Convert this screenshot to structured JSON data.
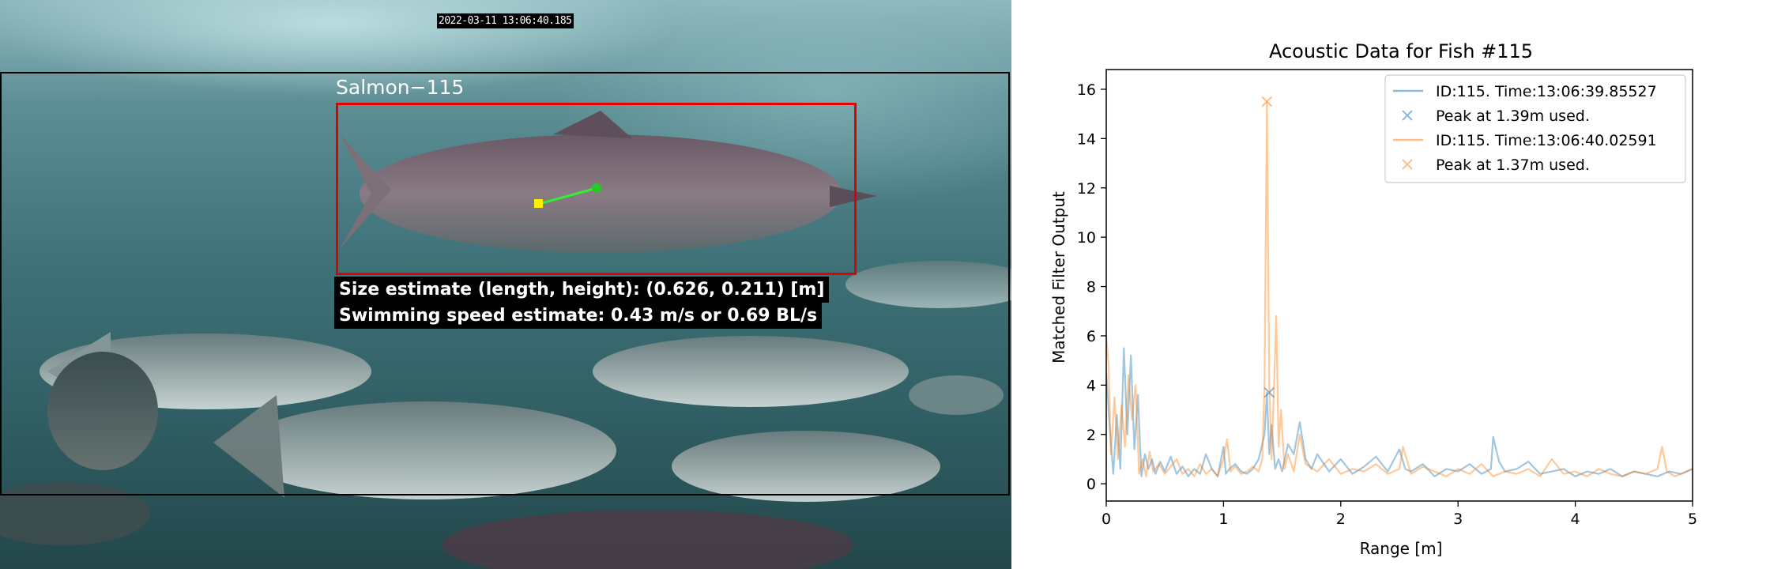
{
  "video": {
    "timestamp": "2022-03-11 13:06:40.185",
    "fish_label": "Salmon−115",
    "size_estimate": "Size estimate (length, height): (0.626, 0.211) [m]",
    "speed_estimate": "Swimming speed estimate: 0.43 m/s or 0.69 BL/s",
    "colors": {
      "bbox": "#e00000",
      "track_line": "#33ee33",
      "track_start": "#ffee00",
      "track_end": "#22cc22"
    }
  },
  "chart_data": {
    "type": "line",
    "title": "Acoustic Data for Fish #115",
    "xlabel": "Range [m]",
    "ylabel": "Matched Filter Output",
    "xlim": [
      0,
      5
    ],
    "ylim": [
      -0.7,
      16.8
    ],
    "xticks": [
      0,
      1,
      2,
      3,
      4,
      5
    ],
    "yticks": [
      0,
      2,
      4,
      6,
      8,
      10,
      12,
      14,
      16
    ],
    "grid": false,
    "legend_position": "top-right",
    "series": [
      {
        "name": "ID:115. Time:13:06:39.85527",
        "color": "#1f77b4",
        "x": [
          0,
          0.03,
          0.06,
          0.09,
          0.12,
          0.15,
          0.18,
          0.21,
          0.24,
          0.27,
          0.3,
          0.33,
          0.36,
          0.39,
          0.42,
          0.46,
          0.5,
          0.55,
          0.6,
          0.65,
          0.7,
          0.75,
          0.8,
          0.85,
          0.9,
          0.95,
          1.0,
          1.02,
          1.05,
          1.1,
          1.15,
          1.2,
          1.25,
          1.3,
          1.35,
          1.37,
          1.39,
          1.41,
          1.44,
          1.47,
          1.5,
          1.55,
          1.6,
          1.65,
          1.7,
          1.75,
          1.8,
          1.9,
          2.0,
          2.1,
          2.2,
          2.3,
          2.4,
          2.5,
          2.55,
          2.6,
          2.7,
          2.8,
          2.9,
          3.0,
          3.1,
          3.2,
          3.28,
          3.3,
          3.35,
          3.4,
          3.5,
          3.6,
          3.7,
          3.8,
          3.9,
          4.0,
          4.1,
          4.2,
          4.3,
          4.4,
          4.5,
          4.6,
          4.7,
          4.8,
          4.9,
          5.0
        ],
        "y": [
          4.5,
          2.2,
          0.4,
          2.8,
          0.6,
          5.5,
          2.0,
          5.2,
          1.4,
          3.6,
          0.3,
          1.2,
          0.6,
          1.0,
          0.4,
          0.9,
          0.5,
          1.1,
          0.4,
          0.7,
          0.3,
          0.6,
          0.4,
          1.2,
          0.6,
          0.3,
          1.5,
          0.4,
          0.6,
          0.8,
          0.5,
          0.4,
          0.6,
          1.0,
          2.0,
          3.7,
          1.2,
          2.4,
          0.6,
          1.0,
          0.5,
          1.6,
          1.2,
          2.5,
          1.0,
          0.6,
          1.2,
          0.5,
          1.0,
          0.4,
          0.7,
          1.1,
          0.5,
          1.4,
          0.6,
          0.5,
          0.8,
          0.3,
          0.6,
          0.5,
          0.8,
          0.4,
          0.6,
          1.9,
          0.9,
          0.5,
          0.6,
          0.9,
          0.4,
          0.5,
          0.6,
          0.3,
          0.5,
          0.4,
          0.6,
          0.3,
          0.5,
          0.4,
          0.3,
          0.5,
          0.4,
          0.6
        ]
      },
      {
        "name": "Peak at 1.39m used.",
        "color": "#1f77b4",
        "marker": "x",
        "x": [
          1.39
        ],
        "y": [
          3.7
        ]
      },
      {
        "name": "ID:115. Time:13:06:40.02591",
        "color": "#ff7f0e",
        "x": [
          0,
          0.02,
          0.04,
          0.07,
          0.1,
          0.13,
          0.16,
          0.19,
          0.22,
          0.25,
          0.28,
          0.31,
          0.34,
          0.37,
          0.4,
          0.45,
          0.5,
          0.55,
          0.6,
          0.65,
          0.7,
          0.75,
          0.8,
          0.85,
          0.9,
          0.95,
          1.0,
          1.03,
          1.06,
          1.1,
          1.15,
          1.2,
          1.25,
          1.3,
          1.33,
          1.35,
          1.37,
          1.39,
          1.41,
          1.43,
          1.45,
          1.47,
          1.49,
          1.52,
          1.55,
          1.6,
          1.65,
          1.7,
          1.8,
          1.9,
          2.0,
          2.1,
          2.2,
          2.3,
          2.4,
          2.5,
          2.53,
          2.6,
          2.7,
          2.8,
          2.9,
          3.0,
          3.1,
          3.2,
          3.3,
          3.4,
          3.5,
          3.6,
          3.7,
          3.8,
          3.9,
          4.0,
          4.1,
          4.2,
          4.3,
          4.4,
          4.5,
          4.6,
          4.7,
          4.74,
          4.78,
          4.85,
          4.9,
          5.0
        ],
        "y": [
          6.0,
          4.8,
          1.2,
          3.5,
          1.0,
          3.2,
          1.5,
          4.4,
          2.6,
          4.0,
          0.4,
          1.0,
          0.3,
          1.3,
          0.5,
          0.8,
          0.4,
          0.7,
          1.0,
          0.4,
          0.6,
          0.3,
          0.8,
          0.4,
          0.6,
          0.3,
          1.0,
          1.8,
          0.5,
          0.7,
          0.4,
          0.5,
          0.7,
          0.5,
          1.0,
          4.0,
          15.5,
          4.0,
          1.0,
          3.8,
          6.8,
          1.5,
          3.0,
          0.6,
          1.2,
          0.5,
          2.0,
          0.8,
          0.5,
          1.0,
          0.4,
          0.6,
          0.5,
          0.8,
          0.4,
          0.6,
          1.5,
          0.4,
          0.7,
          0.5,
          0.3,
          0.6,
          0.4,
          0.8,
          0.3,
          0.5,
          0.4,
          0.6,
          0.3,
          1.0,
          0.4,
          0.5,
          0.3,
          0.6,
          0.4,
          0.3,
          0.5,
          0.4,
          0.6,
          1.5,
          0.5,
          0.3,
          0.4,
          0.6
        ]
      },
      {
        "name": "Peak at 1.37m used.",
        "color": "#ff7f0e",
        "marker": "x",
        "x": [
          1.37
        ],
        "y": [
          15.5
        ]
      }
    ]
  }
}
